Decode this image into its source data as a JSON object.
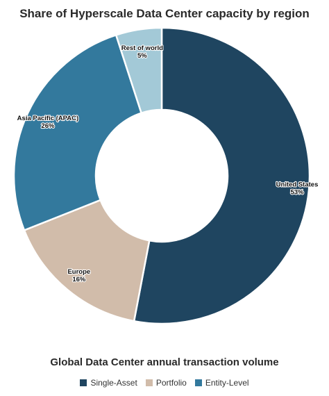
{
  "colors": {
    "united_states": "#1f4560",
    "rest_of_world": "#a3c9d7",
    "asia_pacific": "#33799d",
    "europe": "#d1bcaa",
    "single_asset": "#1f4560",
    "portfolio": "#d1bcaa",
    "entity_level": "#33799d"
  },
  "chart_data": {
    "type": "pie",
    "title": "Share of Hyperscale Data Center capacity by region",
    "donut": true,
    "slices": [
      {
        "label": "United States",
        "value": 53,
        "value_label": "53%",
        "color": "#1f4560"
      },
      {
        "label": "Europe",
        "value": 16,
        "value_label": "16%",
        "color": "#d1bcaa"
      },
      {
        "label": "Asia Pacific (APAC)",
        "value": 26,
        "value_label": "26%",
        "color": "#33799d"
      },
      {
        "label": "Rest of world",
        "value": 5,
        "value_label": "5%",
        "color": "#a3c9d7"
      }
    ]
  },
  "footer": {
    "title": "Global Data Center annual transaction volume",
    "legend": [
      {
        "label": "Single-Asset",
        "color": "#1f4560"
      },
      {
        "label": "Portfolio",
        "color": "#d1bcaa"
      },
      {
        "label": "Entity-Level",
        "color": "#33799d"
      }
    ]
  }
}
